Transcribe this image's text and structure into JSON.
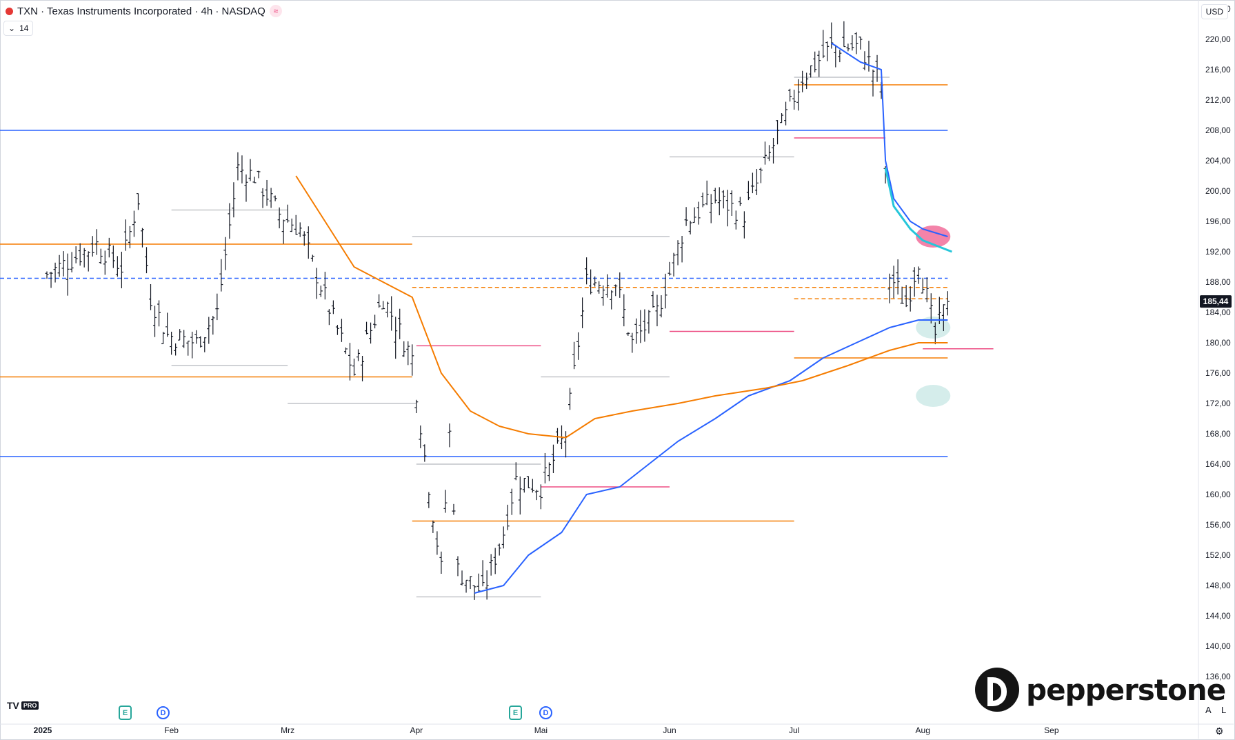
{
  "header": {
    "symbol": "TXN",
    "title": "TXN · Texas Instruments Incorporated · 4h · NASDAQ",
    "indicator_badge": "14",
    "currency": "USD"
  },
  "brand": {
    "name": "pepperstone",
    "tv_logo": "TV",
    "tv_badge": "PRO"
  },
  "event_markers": [
    {
      "kind": "E",
      "month": "Jan"
    },
    {
      "kind": "D",
      "month": "Jan"
    },
    {
      "kind": "E",
      "month": "Apr"
    },
    {
      "kind": "D",
      "month": "Apr"
    }
  ],
  "corner_buttons": {
    "auto": "A",
    "log": "L",
    "settings_icon": "gear-icon"
  },
  "colors": {
    "up_bar": "#131722",
    "blue_ma": "#2962ff",
    "orange_ma": "#f57c00",
    "cyan_line": "#26c6da",
    "level_pink": "#e91e63",
    "level_grey": "#9598a1",
    "price_label_bg": "#131722",
    "zone_green": "#b2dfdb",
    "zone_pink": "#f8bbd0"
  },
  "chart_data": {
    "type": "ohlc",
    "title": "TXN · Texas Instruments Incorporated · 4h · NASDAQ",
    "last_price": "185,44",
    "y_ticks": [
      "224,00",
      "220,00",
      "216,00",
      "212,00",
      "208,00",
      "204,00",
      "200,00",
      "196,00",
      "192,00",
      "188,00",
      "184,00",
      "180,00",
      "176,00",
      "172,00",
      "168,00",
      "164,00",
      "160,00",
      "156,00",
      "152,00",
      "148,00",
      "144,00",
      "140,00",
      "136,00"
    ],
    "ylim": [
      134,
      226
    ],
    "x_ticks": [
      "2025",
      "Feb",
      "Mrz",
      "Apr",
      "Mai",
      "Jun",
      "Jul",
      "Aug",
      "Sep"
    ],
    "grid": false,
    "close_path": [
      {
        "d": "2025-01-02",
        "c": 189
      },
      {
        "d": "2025-01-08",
        "c": 191
      },
      {
        "d": "2025-01-14",
        "c": 193
      },
      {
        "d": "2025-01-20",
        "c": 190
      },
      {
        "d": "2025-01-24",
        "c": 199
      },
      {
        "d": "2025-01-27",
        "c": 186
      },
      {
        "d": "2025-01-31",
        "c": 181
      },
      {
        "d": "2025-02-07",
        "c": 180
      },
      {
        "d": "2025-02-12",
        "c": 184
      },
      {
        "d": "2025-02-17",
        "c": 203
      },
      {
        "d": "2025-02-21",
        "c": 202
      },
      {
        "d": "2025-02-27",
        "c": 197
      },
      {
        "d": "2025-03-04",
        "c": 195
      },
      {
        "d": "2025-03-10",
        "c": 186
      },
      {
        "d": "2025-03-17",
        "c": 176
      },
      {
        "d": "2025-03-24",
        "c": 186
      },
      {
        "d": "2025-03-31",
        "c": 178
      },
      {
        "d": "2025-04-03",
        "c": 165
      },
      {
        "d": "2025-04-07",
        "c": 150
      },
      {
        "d": "2025-04-09",
        "c": 168
      },
      {
        "d": "2025-04-11",
        "c": 150
      },
      {
        "d": "2025-04-17",
        "c": 147
      },
      {
        "d": "2025-04-22",
        "c": 155
      },
      {
        "d": "2025-04-25",
        "c": 162
      },
      {
        "d": "2025-05-01",
        "c": 161
      },
      {
        "d": "2025-05-07",
        "c": 168
      },
      {
        "d": "2025-05-12",
        "c": 188
      },
      {
        "d": "2025-05-19",
        "c": 188
      },
      {
        "d": "2025-05-23",
        "c": 180
      },
      {
        "d": "2025-05-29",
        "c": 184
      },
      {
        "d": "2025-06-05",
        "c": 196
      },
      {
        "d": "2025-06-12",
        "c": 199
      },
      {
        "d": "2025-06-19",
        "c": 197
      },
      {
        "d": "2025-06-26",
        "c": 206
      },
      {
        "d": "2025-07-03",
        "c": 215
      },
      {
        "d": "2025-07-10",
        "c": 219
      },
      {
        "d": "2025-07-17",
        "c": 219
      },
      {
        "d": "2025-07-22",
        "c": 214
      },
      {
        "d": "2025-07-24",
        "c": 189
      },
      {
        "d": "2025-07-28",
        "c": 185
      },
      {
        "d": "2025-07-31",
        "c": 191
      },
      {
        "d": "2025-08-04",
        "c": 181
      },
      {
        "d": "2025-08-07",
        "c": 185.44
      }
    ],
    "series": [
      {
        "kind": "ma",
        "color": "blue",
        "points": [
          {
            "d": "2025-04-15",
            "v": 147
          },
          {
            "d": "2025-04-22",
            "v": 148
          },
          {
            "d": "2025-04-28",
            "v": 152
          },
          {
            "d": "2025-05-06",
            "v": 155
          },
          {
            "d": "2025-05-12",
            "v": 160
          },
          {
            "d": "2025-05-20",
            "v": 161
          },
          {
            "d": "2025-05-27",
            "v": 164
          },
          {
            "d": "2025-06-03",
            "v": 167
          },
          {
            "d": "2025-06-12",
            "v": 170
          },
          {
            "d": "2025-06-20",
            "v": 173
          },
          {
            "d": "2025-06-30",
            "v": 175
          },
          {
            "d": "2025-07-08",
            "v": 178
          },
          {
            "d": "2025-07-16",
            "v": 180
          },
          {
            "d": "2025-07-24",
            "v": 182
          },
          {
            "d": "2025-07-31",
            "v": 183
          },
          {
            "d": "2025-08-07",
            "v": 183
          }
        ]
      },
      {
        "kind": "ma",
        "color": "orange",
        "points": [
          {
            "d": "2025-03-03",
            "v": 202
          },
          {
            "d": "2025-03-10",
            "v": 196
          },
          {
            "d": "2025-03-17",
            "v": 190
          },
          {
            "d": "2025-03-24",
            "v": 188
          },
          {
            "d": "2025-03-31",
            "v": 186
          },
          {
            "d": "2025-04-07",
            "v": 176
          },
          {
            "d": "2025-04-14",
            "v": 171
          },
          {
            "d": "2025-04-21",
            "v": 169
          },
          {
            "d": "2025-04-28",
            "v": 168
          },
          {
            "d": "2025-05-07",
            "v": 167.5
          },
          {
            "d": "2025-05-14",
            "v": 170
          },
          {
            "d": "2025-05-23",
            "v": 171
          },
          {
            "d": "2025-06-03",
            "v": 172
          },
          {
            "d": "2025-06-12",
            "v": 173
          },
          {
            "d": "2025-06-24",
            "v": 174
          },
          {
            "d": "2025-07-03",
            "v": 175
          },
          {
            "d": "2025-07-14",
            "v": 177
          },
          {
            "d": "2025-07-24",
            "v": 179
          },
          {
            "d": "2025-07-31",
            "v": 180
          },
          {
            "d": "2025-08-07",
            "v": 180
          }
        ]
      },
      {
        "kind": "ma",
        "color": "blue",
        "points": [
          {
            "d": "2025-07-10",
            "v": 219.5
          },
          {
            "d": "2025-07-17",
            "v": 217
          },
          {
            "d": "2025-07-22",
            "v": 216
          },
          {
            "d": "2025-07-23",
            "v": 204
          },
          {
            "d": "2025-07-25",
            "v": 199
          },
          {
            "d": "2025-07-29",
            "v": 196
          },
          {
            "d": "2025-08-01",
            "v": 195
          },
          {
            "d": "2025-08-07",
            "v": 194
          }
        ]
      },
      {
        "kind": "projection",
        "color": "cyan",
        "points": [
          {
            "d": "2025-07-23",
            "v": 203
          },
          {
            "d": "2025-07-25",
            "v": 198
          },
          {
            "d": "2025-07-29",
            "v": 195
          },
          {
            "d": "2025-08-01",
            "v": 193.5
          },
          {
            "d": "2025-08-08",
            "v": 192
          }
        ]
      }
    ],
    "levels": [
      {
        "v": 208,
        "from": "2025-01-01",
        "to": "2025-08-07",
        "style": "solid",
        "color": "blue"
      },
      {
        "v": 193,
        "from": "2025-01-01",
        "to": "2025-03-31",
        "style": "solid",
        "color": "orange"
      },
      {
        "v": 188.5,
        "from": "2025-01-01",
        "to": "2025-08-07",
        "style": "dashed",
        "color": "blue"
      },
      {
        "v": 187.3,
        "from": "2025-03-31",
        "to": "2025-08-07",
        "style": "dashed",
        "color": "orange"
      },
      {
        "v": 175.5,
        "from": "2025-01-01",
        "to": "2025-03-31",
        "style": "solid",
        "color": "orange"
      },
      {
        "v": 165,
        "from": "2025-01-01",
        "to": "2025-08-07",
        "style": "solid",
        "color": "blue"
      },
      {
        "v": 156.5,
        "from": "2025-03-31",
        "to": "2025-07-01",
        "style": "solid",
        "color": "orange"
      },
      {
        "v": 214,
        "from": "2025-07-01",
        "to": "2025-08-07",
        "style": "solid",
        "color": "orange"
      },
      {
        "v": 178,
        "from": "2025-07-01",
        "to": "2025-08-07",
        "style": "solid",
        "color": "orange"
      },
      {
        "v": 185.8,
        "from": "2025-07-01",
        "to": "2025-08-07",
        "style": "dashed",
        "color": "orange"
      },
      {
        "v": 207,
        "from": "2025-07-01",
        "to": "2025-07-23",
        "style": "solid",
        "color": "pink"
      },
      {
        "v": 181.5,
        "from": "2025-06-01",
        "to": "2025-07-01",
        "style": "solid",
        "color": "pink"
      },
      {
        "v": 179.2,
        "from": "2025-08-01",
        "to": "2025-08-18",
        "style": "solid",
        "color": "pink"
      },
      {
        "v": 179.6,
        "from": "2025-04-01",
        "to": "2025-05-01",
        "style": "solid",
        "color": "pink"
      },
      {
        "v": 161,
        "from": "2025-05-01",
        "to": "2025-06-01",
        "style": "solid",
        "color": "pink"
      },
      {
        "v": 194,
        "from": "2025-03-31",
        "to": "2025-06-01",
        "style": "solid",
        "color": "grey"
      },
      {
        "v": 175.5,
        "from": "2025-05-01",
        "to": "2025-06-01",
        "style": "solid",
        "color": "grey"
      },
      {
        "v": 197.5,
        "from": "2025-02-01",
        "to": "2025-03-01",
        "style": "solid",
        "color": "grey"
      },
      {
        "v": 177,
        "from": "2025-02-01",
        "to": "2025-03-01",
        "style": "solid",
        "color": "grey"
      },
      {
        "v": 172,
        "from": "2025-03-01",
        "to": "2025-04-01",
        "style": "solid",
        "color": "grey"
      },
      {
        "v": 164,
        "from": "2025-04-01",
        "to": "2025-05-01",
        "style": "solid",
        "color": "grey"
      },
      {
        "v": 146.5,
        "from": "2025-04-01",
        "to": "2025-05-01",
        "style": "solid",
        "color": "grey"
      },
      {
        "v": 204.5,
        "from": "2025-06-01",
        "to": "2025-07-01",
        "style": "solid",
        "color": "grey"
      },
      {
        "v": 215,
        "from": "2025-07-01",
        "to": "2025-07-24",
        "style": "solid",
        "color": "grey"
      }
    ],
    "zones": [
      {
        "d": "2025-08-01",
        "v": 194,
        "color": "pink"
      },
      {
        "d": "2025-08-01",
        "v": 182,
        "color": "green"
      },
      {
        "d": "2025-08-01",
        "v": 173,
        "color": "green"
      }
    ]
  }
}
